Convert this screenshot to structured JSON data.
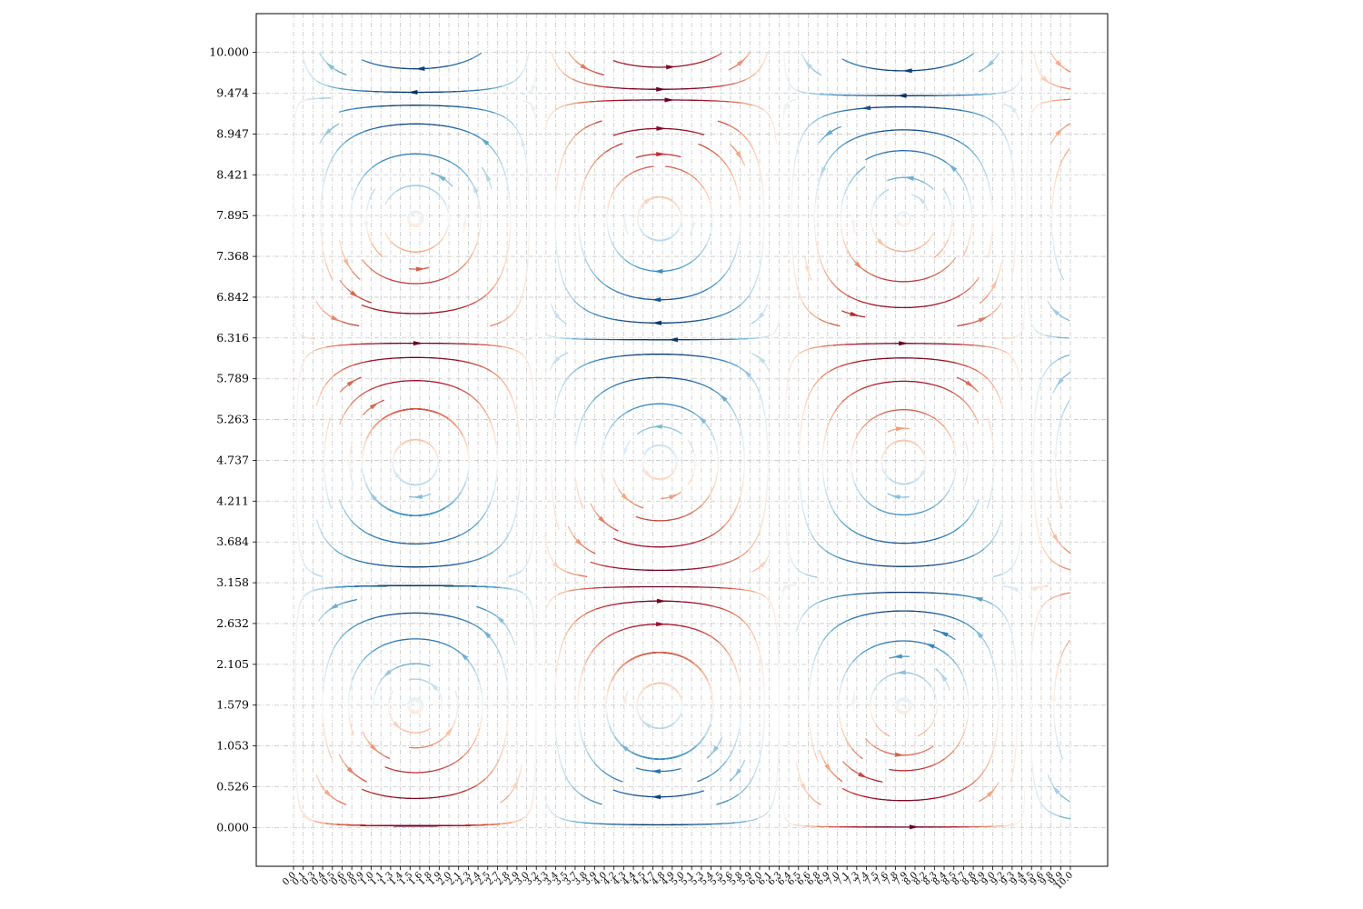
{
  "chart_data": {
    "type": "streamplot",
    "title": "",
    "xlabel": "",
    "ylabel": "",
    "xlim": [
      -0.48,
      10.48
    ],
    "ylim": [
      -0.5,
      10.5
    ],
    "field": {
      "u": "sin(x) * cos(y)",
      "v": "-cos(x) * sin(y)",
      "note_color": "colored by u"
    },
    "colormap": "RdBu",
    "grid": true,
    "grid_style": "dash-dot, light gray",
    "y_ticks": [
      "0.000",
      "0.526",
      "1.053",
      "1.579",
      "2.105",
      "2.632",
      "3.158",
      "3.684",
      "4.211",
      "4.737",
      "5.263",
      "5.789",
      "6.316",
      "6.842",
      "7.368",
      "7.895",
      "8.421",
      "8.947",
      "9.474",
      "10.000"
    ],
    "x_ticks": [
      "0.0",
      "0.1",
      "0.3",
      "0.4",
      "0.5",
      "0.6",
      "0.8",
      "0.9",
      "1.0",
      "1.1",
      "1.3",
      "1.4",
      "1.5",
      "1.6",
      "1.8",
      "1.9",
      "2.0",
      "2.1",
      "2.3",
      "2.4",
      "2.5",
      "2.7",
      "2.8",
      "2.9",
      "3.0",
      "3.2",
      "3.3",
      "3.4",
      "3.5",
      "3.7",
      "3.8",
      "3.9",
      "4.0",
      "4.2",
      "4.3",
      "4.4",
      "4.5",
      "4.7",
      "4.8",
      "4.9",
      "5.0",
      "5.1",
      "5.3",
      "5.4",
      "5.5",
      "5.6",
      "5.8",
      "5.9",
      "6.0",
      "6.1",
      "6.3",
      "6.4",
      "6.5",
      "6.6",
      "6.8",
      "6.9",
      "7.0",
      "7.1",
      "7.3",
      "7.4",
      "7.5",
      "7.6",
      "7.8",
      "7.9",
      "8.0",
      "8.2",
      "8.3",
      "8.4",
      "8.5",
      "8.7",
      "8.8",
      "8.9",
      "9.0",
      "9.2",
      "9.3",
      "9.4",
      "9.5",
      "9.6",
      "9.8",
      "9.9",
      "10.0"
    ],
    "x_tick_rotation_deg": 45
  }
}
